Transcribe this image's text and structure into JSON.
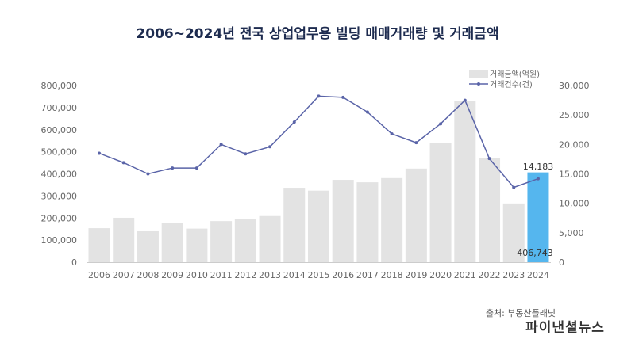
{
  "chart_data": {
    "type": "bar+line",
    "title": "2006~2024년 전국 상업업무용 빌딩 매매거래량 및 거래금액",
    "categories": [
      "2006",
      "2007",
      "2008",
      "2009",
      "2010",
      "2011",
      "2012",
      "2013",
      "2014",
      "2015",
      "2016",
      "2017",
      "2018",
      "2019",
      "2020",
      "2021",
      "2022",
      "2023",
      "2024"
    ],
    "series": [
      {
        "name": "거래금액(억원)",
        "type": "bar",
        "axis": "left",
        "values": [
          154000,
          201000,
          140000,
          176000,
          152000,
          186000,
          194000,
          209000,
          337000,
          324000,
          373000,
          362000,
          381000,
          424000,
          541000,
          731000,
          470000,
          266000,
          406743
        ],
        "color": "#e3e3e3",
        "highlight_color": "#55b6ee"
      },
      {
        "name": "거래건수(건)",
        "type": "line",
        "axis": "right",
        "values": [
          18500,
          16900,
          15000,
          16000,
          16000,
          20000,
          18400,
          19600,
          23800,
          28200,
          28000,
          25500,
          21800,
          20300,
          23500,
          27500,
          17600,
          12700,
          14183
        ],
        "color": "#5a64a8"
      }
    ],
    "left_axis": {
      "range": [
        0,
        800000
      ],
      "ticks": [
        "0",
        "100,000",
        "200,000",
        "300,000",
        "400,000",
        "500,000",
        "600,000",
        "700,000",
        "800,000"
      ]
    },
    "right_axis": {
      "range": [
        0,
        30000
      ],
      "ticks": [
        "0",
        "5,000",
        "10,000",
        "15,000",
        "20,000",
        "25,000",
        "30,000"
      ]
    },
    "data_labels": {
      "bar_2024": "406,743",
      "line_2024": "14,183"
    },
    "grid": false,
    "legend_placement": "top-right",
    "source": "출처: 부동산플래닛",
    "watermark": "파이낸셜뉴스"
  }
}
